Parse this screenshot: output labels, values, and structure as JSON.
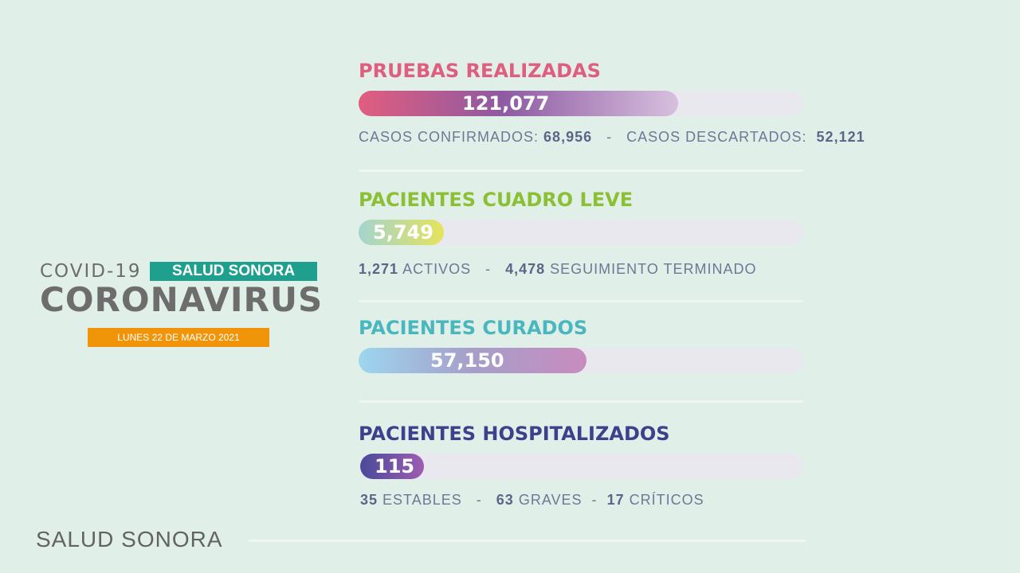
{
  "brand": {
    "covid_label": "COVID-19",
    "badge": "SALUD SONORA",
    "title": "CORONAVIRUS",
    "date": "LUNES 22 DE MARZO 2021"
  },
  "sections": [
    {
      "title": "PRUEBAS REALIZADAS",
      "value": "121,077",
      "details": [
        {
          "label": "CASOS CONFIRMADOS:",
          "value": "68,956"
        },
        {
          "sep": "-"
        },
        {
          "label": "CASOS DESCARTADOS:",
          "value": "52,121"
        }
      ]
    },
    {
      "title": "PACIENTES CUADRO LEVE",
      "value": "5,749",
      "details": [
        {
          "value": "1,271",
          "label": "ACTIVOS"
        },
        {
          "sep": "-"
        },
        {
          "value": "4,478",
          "label": "SEGUIMIENTO TERMINADO"
        }
      ]
    },
    {
      "title": "PACIENTES CURADOS",
      "value": "57,150"
    },
    {
      "title": "PACIENTES HOSPITALIZADOS",
      "value": "115",
      "details": [
        {
          "value": "35",
          "label": "ESTABLES"
        },
        {
          "sep": "-"
        },
        {
          "value": "63",
          "label": "GRAVES"
        },
        {
          "sep": "-"
        },
        {
          "value": "17",
          "label": "CRÍTICOS"
        }
      ]
    }
  ],
  "footer": {
    "label": "SALUD SONORA"
  },
  "colors": {
    "background": "#e0efe7",
    "pruebas": "#df5d7e",
    "leve": "#8cc034",
    "curados": "#49b7bd",
    "hospitalizados": "#3e3f8d",
    "badge_teal": "#1fa08e",
    "badge_orange": "#f0940a"
  }
}
